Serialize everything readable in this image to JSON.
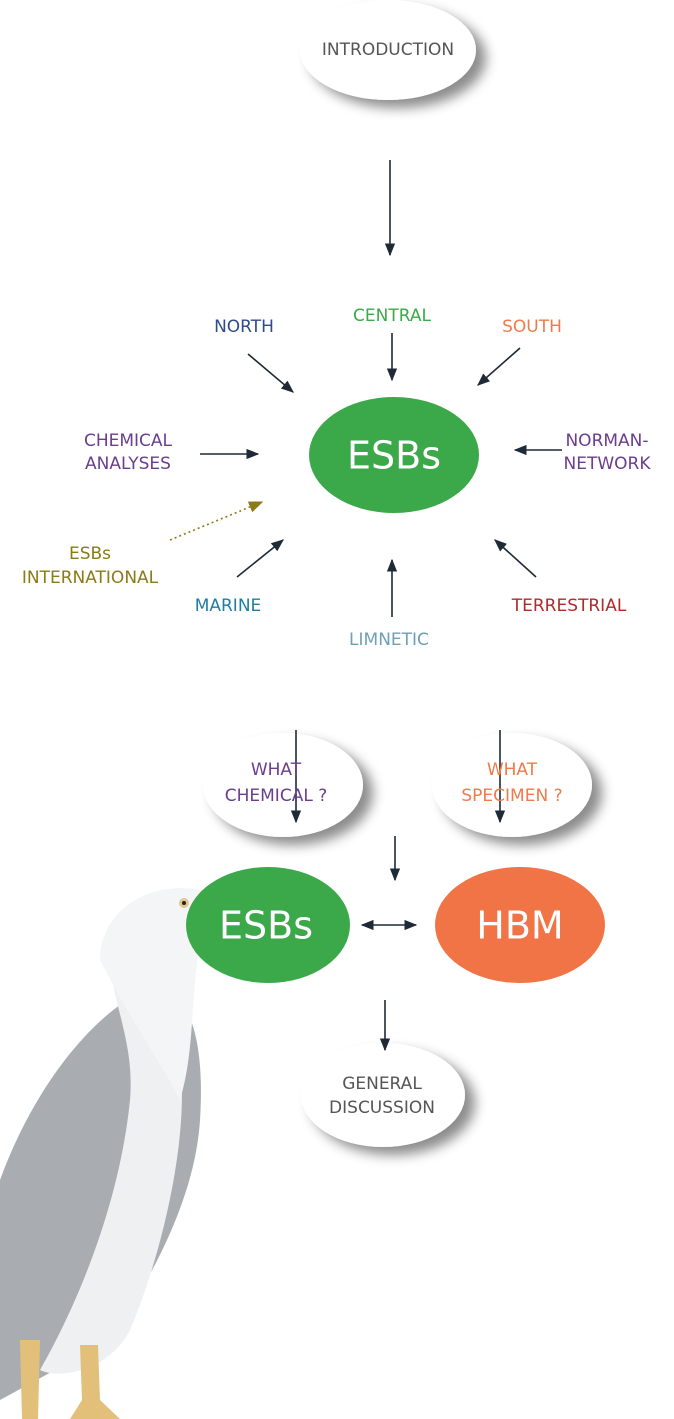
{
  "nodes": [
    {
      "lines": [
        "INTRODUCTION"
      ]
    },
    {
      "lines": [
        "NORTH"
      ]
    },
    {
      "lines": [
        "CENTRAL"
      ]
    },
    {
      "lines": [
        "SOUTH"
      ]
    },
    {
      "lines": [
        "CHEMICAL",
        "ANALYSES"
      ]
    },
    {
      "lines": [
        "ESBs"
      ]
    },
    {
      "lines": [
        "NORMAN-",
        "NETWORK"
      ]
    },
    {
      "lines": [
        "ESBs",
        "INTERNATIONAL"
      ]
    },
    {
      "lines": [
        "MARINE"
      ]
    },
    {
      "lines": [
        "LIMNETIC"
      ]
    },
    {
      "lines": [
        "TERRESTRIAL"
      ]
    },
    {
      "lines": [
        "WHAT",
        "CHEMICAL ?"
      ]
    },
    {
      "lines": [
        "WHAT",
        "SPECIMEN ?"
      ]
    },
    {
      "lines": [
        "ESBs"
      ]
    },
    {
      "lines": [
        "HBM"
      ]
    },
    {
      "lines": [
        "GENERAL",
        "DISCUSSION"
      ]
    }
  ]
}
